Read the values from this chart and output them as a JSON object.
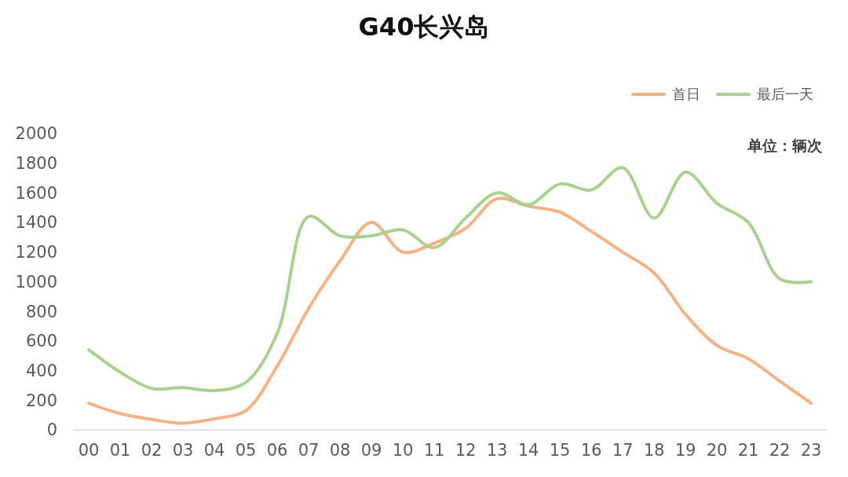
{
  "chart_data": {
    "type": "line",
    "title": "G40长兴岛",
    "annotations": [
      "单位：辆次"
    ],
    "categories": [
      "00",
      "01",
      "02",
      "03",
      "04",
      "05",
      "06",
      "07",
      "08",
      "09",
      "10",
      "11",
      "12",
      "13",
      "14",
      "15",
      "16",
      "17",
      "18",
      "19",
      "20",
      "21",
      "22",
      "23"
    ],
    "series": [
      {
        "name": "首日",
        "color": "#f4b183",
        "values": [
          180,
          110,
          70,
          45,
          75,
          130,
          430,
          820,
          1140,
          1400,
          1200,
          1260,
          1360,
          1560,
          1510,
          1470,
          1340,
          1200,
          1060,
          780,
          570,
          480,
          330,
          180
        ]
      },
      {
        "name": "最后一天",
        "color": "#a9d18e",
        "values": [
          540,
          390,
          280,
          285,
          265,
          320,
          650,
          1440,
          1310,
          1310,
          1350,
          1230,
          1430,
          1600,
          1520,
          1660,
          1620,
          1770,
          1430,
          1740,
          1530,
          1400,
          1020,
          1000
        ]
      }
    ],
    "ylim": [
      0,
      2000
    ],
    "yticks": [
      0,
      200,
      400,
      600,
      800,
      1000,
      1200,
      1400,
      1600,
      1800,
      2000
    ],
    "grid": false,
    "legend": "top right",
    "marker": "none",
    "line_style": "solid"
  }
}
